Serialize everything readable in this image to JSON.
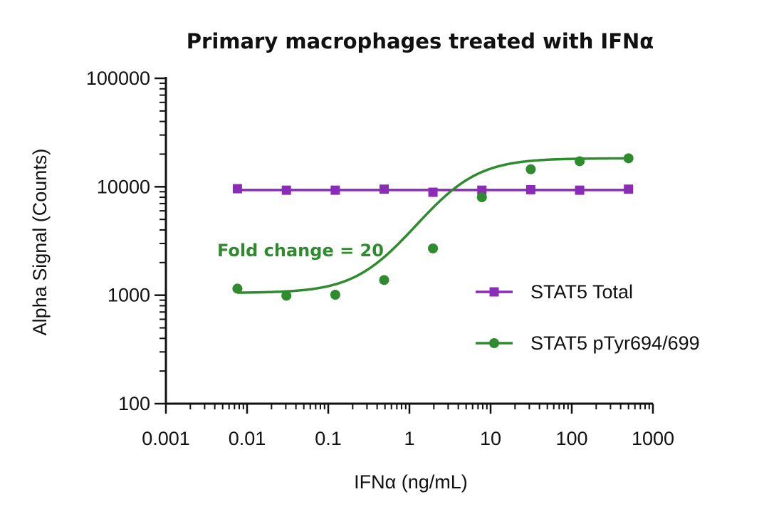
{
  "chart_data": {
    "type": "scatter",
    "title": "Primary macrophages treated with IFNα",
    "xlabel": "IFNα (ng/mL)",
    "ylabel": "Alpha Signal (Counts)",
    "x_scale": "log",
    "y_scale": "log",
    "xlim": [
      0.001,
      1000
    ],
    "ylim": [
      100,
      100000
    ],
    "x_tick_labels": [
      "0.001",
      "0.01",
      "0.1",
      "1",
      "10",
      "100",
      "1000"
    ],
    "y_tick_labels": [
      "100",
      "1000",
      "10000",
      "100000"
    ],
    "grid": false,
    "legend_position": "right",
    "annotation": "Fold change =  20",
    "series": [
      {
        "name": "STAT5 Total",
        "marker": "square",
        "color": "#8a2cb8",
        "x": [
          0.0076,
          0.0305,
          0.122,
          0.488,
          1.95,
          7.81,
          31.25,
          125,
          500
        ],
        "y": [
          9600,
          9300,
          9300,
          9500,
          8900,
          9300,
          9400,
          9300,
          9500
        ],
        "fit": "flat"
      },
      {
        "name": "STAT5 pTyr694/699",
        "marker": "circle",
        "color": "#2e8b2e",
        "x": [
          0.0076,
          0.0305,
          0.122,
          0.488,
          1.95,
          7.81,
          31.25,
          125,
          500
        ],
        "y": [
          1150,
          990,
          1010,
          1380,
          2700,
          8000,
          14500,
          17200,
          18300
        ],
        "fit": {
          "model": "4PL",
          "bottom": 1050,
          "top": 18300,
          "ec50": 3.6,
          "hill": 1.3
        }
      }
    ]
  }
}
